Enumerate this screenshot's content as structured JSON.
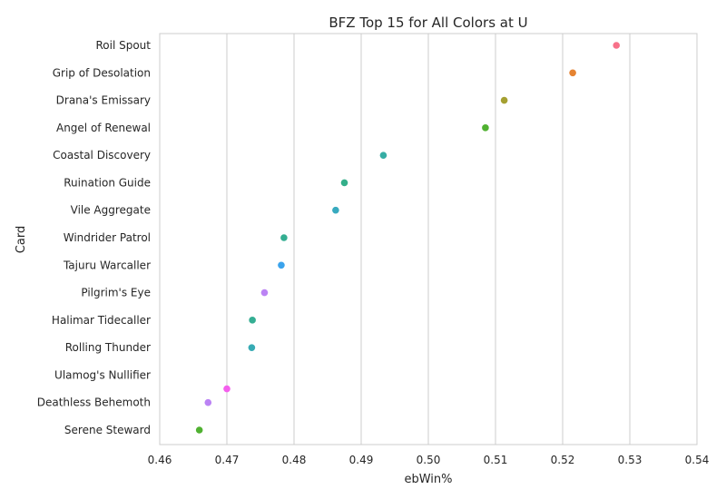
{
  "chart_data": {
    "type": "scatter",
    "title": "BFZ Top 15 for All Colors at U",
    "xlabel": "ebWin%",
    "ylabel": "Card",
    "xlim": [
      0.46,
      0.54
    ],
    "xticks": [
      "0.46",
      "0.47",
      "0.48",
      "0.49",
      "0.50",
      "0.51",
      "0.52",
      "0.53",
      "0.54"
    ],
    "grid": true,
    "orientation": "horizontal-categories-on-y",
    "points": [
      {
        "card": "Roil Spout",
        "x": 0.528,
        "color": "#f77189"
      },
      {
        "card": "Grip of Desolation",
        "x": 0.5215,
        "color": "#e58331"
      },
      {
        "card": "Drana's Emissary",
        "x": 0.5113,
        "color": "#a5a031"
      },
      {
        "card": "Angel of Renewal",
        "x": 0.5085,
        "color": "#50b131"
      },
      {
        "card": "Coastal Discovery",
        "x": 0.4933,
        "color": "#36ada4"
      },
      {
        "card": "Ruination Guide",
        "x": 0.4875,
        "color": "#34af8a"
      },
      {
        "card": "Vile Aggregate",
        "x": 0.4862,
        "color": "#38aabf"
      },
      {
        "card": "Windrider Patrol",
        "x": 0.4785,
        "color": "#34ae91"
      },
      {
        "card": "Tajuru Warcaller",
        "x": 0.4781,
        "color": "#3ba3ec"
      },
      {
        "card": "Pilgrim's Eye",
        "x": 0.4756,
        "color": "#bb83f4"
      },
      {
        "card": "Halimar Tidecaller",
        "x": 0.4738,
        "color": "#35ae93"
      },
      {
        "card": "Rolling Thunder",
        "x": 0.4737,
        "color": "#37abb4"
      },
      {
        "card": "Ulamog's Nullifier",
        "x": null,
        "color": "#f45fed"
      },
      {
        "card": "Deathless Behemoth",
        "x": 0.4672,
        "color": "#bb83f4"
      },
      {
        "card": "Serene Steward",
        "x": 0.4659,
        "color": "#50b131"
      }
    ],
    "extra_points": [
      {
        "x": 0.47,
        "row_between": [
          12,
          13
        ],
        "color": "#f45fed"
      }
    ]
  }
}
